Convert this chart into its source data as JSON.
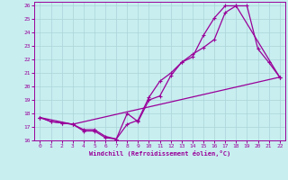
{
  "title": "",
  "xlabel": "Windchill (Refroidissement éolien,°C)",
  "ylabel": "",
  "background_color": "#c8eef0",
  "grid_color": "#aad4d8",
  "line_color": "#990099",
  "xlim": [
    -0.5,
    22.5
  ],
  "ylim": [
    16,
    26.3
  ],
  "xticks": [
    0,
    1,
    2,
    3,
    4,
    5,
    6,
    7,
    8,
    9,
    10,
    11,
    12,
    13,
    14,
    15,
    16,
    17,
    18,
    19,
    20,
    21,
    22
  ],
  "yticks": [
    16,
    17,
    18,
    19,
    20,
    21,
    22,
    23,
    24,
    25,
    26
  ],
  "line1_x": [
    0,
    1,
    2,
    3,
    4,
    5,
    6,
    7,
    8,
    9,
    10,
    11,
    12,
    13,
    14,
    15,
    16,
    17,
    18,
    22
  ],
  "line1_y": [
    17.7,
    17.4,
    17.3,
    17.2,
    16.7,
    16.7,
    16.2,
    16.1,
    17.2,
    17.5,
    19.2,
    20.4,
    21.0,
    21.8,
    22.2,
    23.8,
    25.1,
    26.0,
    26.0,
    20.7
  ],
  "line2_x": [
    0,
    1,
    2,
    3,
    4,
    5,
    6,
    7,
    8,
    9,
    10,
    11,
    12,
    13,
    14,
    15,
    16,
    17,
    18,
    19,
    20,
    21,
    22
  ],
  "line2_y": [
    17.7,
    17.4,
    17.3,
    17.2,
    16.8,
    16.8,
    16.3,
    16.1,
    18.0,
    17.4,
    19.0,
    19.3,
    20.8,
    21.8,
    22.4,
    22.9,
    23.5,
    25.5,
    26.0,
    26.0,
    22.8,
    21.8,
    20.7
  ],
  "line3_x": [
    0,
    3,
    22
  ],
  "line3_y": [
    17.7,
    17.2,
    20.7
  ],
  "marker": "+",
  "markersize": 3,
  "linewidth": 0.9
}
